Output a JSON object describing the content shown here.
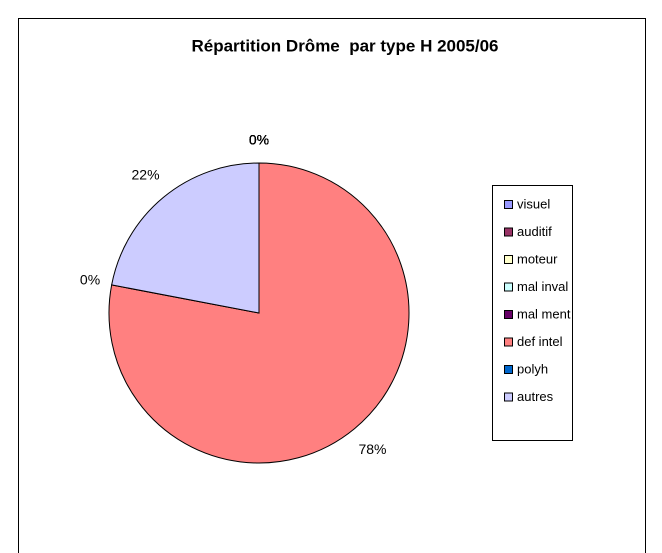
{
  "chart_data": {
    "type": "pie",
    "title": "Répartition Drôme  par type H 2005/06",
    "categories": [
      "visuel",
      "auditif",
      "moteur",
      "mal inval",
      "mal ment",
      "def intel",
      "polyh",
      "autres"
    ],
    "values": [
      0,
      0,
      0,
      0,
      0,
      78,
      0,
      22
    ],
    "value_labels": [
      "0%",
      "0%",
      "0%",
      "0%",
      "0%",
      "78%",
      "0%",
      "22%"
    ],
    "colors": [
      "#9999FF",
      "#993366",
      "#FFFFCC",
      "#CCFFFF",
      "#660066",
      "#FF8080",
      "#0066CC",
      "#CCCCFF"
    ],
    "legend": "right"
  }
}
